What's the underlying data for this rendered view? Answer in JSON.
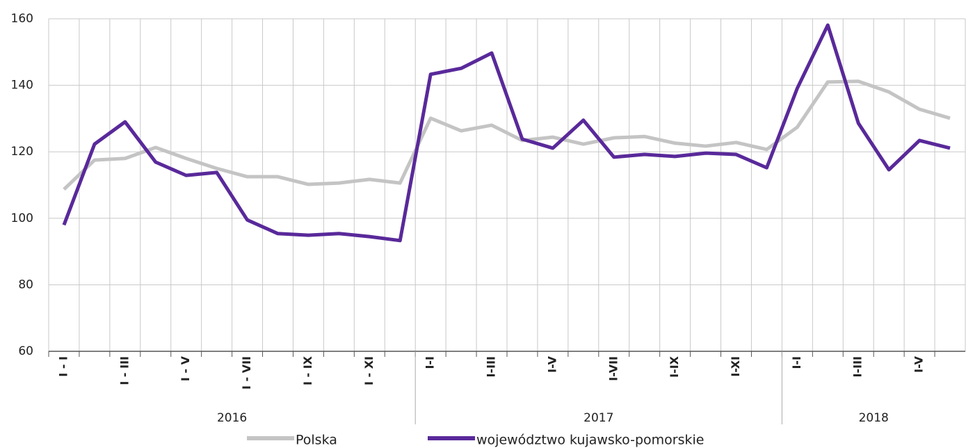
{
  "chart_data": {
    "type": "line",
    "categories": [
      "I - I",
      null,
      "I - III",
      null,
      "I - V",
      null,
      "I - VII",
      null,
      "I - IX",
      null,
      "I - XI",
      null,
      "I-I",
      null,
      "I-III",
      null,
      "I-V",
      null,
      "I-VII",
      null,
      "I-IX",
      null,
      "I-XI",
      null,
      "I-I",
      null,
      "I-III",
      null,
      "I-V",
      null
    ],
    "groups": [
      {
        "label": "2016",
        "count": 12
      },
      {
        "label": "2017",
        "count": 12
      },
      {
        "label": "2018",
        "count": 6
      }
    ],
    "series": [
      {
        "name": "Polska",
        "color": "#c4c4c4",
        "values": [
          108.7,
          117.5,
          118,
          121.3,
          118,
          115,
          112.5,
          112.5,
          110.2,
          110.6,
          111.7,
          110.6,
          130.1,
          126.3,
          128,
          123.4,
          124.4,
          122.3,
          124.2,
          124.6,
          122.6,
          121.7,
          122.8,
          120.7,
          127.4,
          141,
          141.2,
          138,
          132.8,
          130.1
        ]
      },
      {
        "name": "województwo kujawsko-pomorskie",
        "color": "#59299a",
        "values": [
          98,
          122.3,
          129,
          116.9,
          112.9,
          113.8,
          99.5,
          95.4,
          94.9,
          95.4,
          94.5,
          93.3,
          143.3,
          145.1,
          149.7,
          123.8,
          121.1,
          129.5,
          118.4,
          119.2,
          118.6,
          119.6,
          119.2,
          115.2,
          139.1,
          158.1,
          128.6,
          114.6,
          123.4,
          121.1
        ]
      }
    ],
    "ylim": [
      60,
      160
    ],
    "yticks": [
      60,
      80,
      100,
      120,
      140,
      160
    ],
    "grid": true,
    "legend": "bottom"
  }
}
